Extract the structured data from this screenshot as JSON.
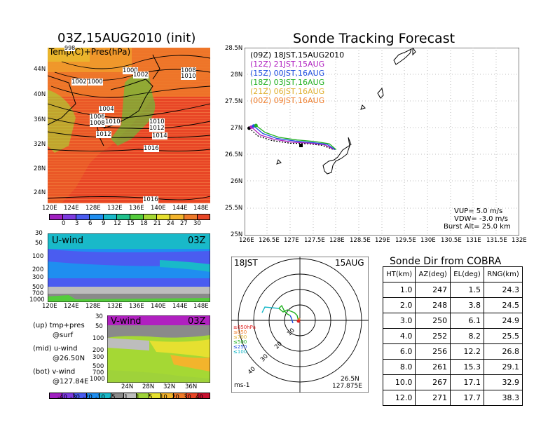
{
  "map_panel": {
    "title": "03Z,15AUG2010 (init)",
    "overlay_label": "Temp(C)+Pres(hPa)",
    "lat_ticks": [
      "44N",
      "40N",
      "36N",
      "32N",
      "28N",
      "24N"
    ],
    "lon_ticks": [
      "120E",
      "124E",
      "128E",
      "132E",
      "136E",
      "140E",
      "144E",
      "148E"
    ],
    "isobar_labels": [
      "998",
      "1000",
      "1002",
      "1000",
      "1002",
      "1008",
      "1010",
      "1004",
      "1006",
      "1008",
      "1010",
      "1012",
      "1010",
      "1012",
      "1014",
      "1016",
      "1016"
    ],
    "colorbar_ticks": [
      "0",
      "3",
      "6",
      "9",
      "12",
      "15",
      "18",
      "21",
      "24",
      "27",
      "30"
    ],
    "colorbar_colors": [
      "#a020c0",
      "#7d3be0",
      "#4a5cf0",
      "#1f8ef0",
      "#19b9c9",
      "#1fc18c",
      "#54cc3c",
      "#a5d834",
      "#e6e030",
      "#f3b42c",
      "#ee7a2a",
      "#e84626"
    ]
  },
  "tracking_panel": {
    "title": "Sonde Tracking Forecast",
    "lat_ticks": [
      "28.5N",
      "28N",
      "27.5N",
      "27N",
      "26.5N",
      "26N",
      "25.5N",
      "25N"
    ],
    "lon_ticks": [
      "126E",
      "126.5E",
      "127E",
      "127.5E",
      "128E",
      "128.5E",
      "129E",
      "129.5E",
      "130E",
      "130.5E",
      "131E",
      "131.5E",
      "132E"
    ],
    "legend": [
      {
        "label": "(09Z)  18JST,15AUG2010",
        "color": "#000000"
      },
      {
        "label": "(12Z)  21JST,15AUG",
        "color": "#b020c0"
      },
      {
        "label": "(15Z)  00JST,16AUG",
        "color": "#2050e0"
      },
      {
        "label": "(18Z)  03JST,16AUG",
        "color": "#20b020"
      },
      {
        "label": "(21Z)  06JST,16AUG",
        "color": "#e0b030"
      },
      {
        "label": "(00Z)  09JST,16AUG",
        "color": "#f08030"
      }
    ],
    "params": [
      "VUP= 5.0 m/s",
      "VDW= -3.0 m/s",
      "Burst Alt= 25.0 km"
    ]
  },
  "u_wind_panel": {
    "label": "U-wind",
    "time": "03Z",
    "pres_ticks": [
      "30",
      "50",
      "100",
      "200",
      "300",
      "500",
      "700",
      "1000"
    ],
    "lon_ticks": [
      "120E",
      "124E",
      "128E",
      "132E",
      "136E",
      "140E",
      "144E",
      "148E"
    ]
  },
  "v_wind_panel": {
    "label": "V-wind",
    "time": "03Z",
    "pres_ticks": [
      "30",
      "50",
      "100",
      "200",
      "300",
      "500",
      "700",
      "1000"
    ],
    "lat_ticks": [
      "24N",
      "28N",
      "32N",
      "36N"
    ],
    "colorbar_ticks": [
      "-40",
      "-30",
      "-20",
      "-10",
      "-5",
      "-1",
      "1",
      "5",
      "10",
      "20",
      "30",
      "40"
    ],
    "colorbar_colors": [
      "#a020c0",
      "#7d3be0",
      "#4a5cf0",
      "#1f8ef0",
      "#19b9c9",
      "#8a8a8a",
      "#bdbdbd",
      "#9fd23a",
      "#e6e030",
      "#f3b42c",
      "#ee7a2a",
      "#e84626",
      "#c8102e"
    ]
  },
  "notes": {
    "up": "(up) tmp+pres",
    "up2": "@surf",
    "mid": "(mid) u-wind",
    "mid2": "@26.50N",
    "bot": "(bot) v-wind",
    "bot2": "@127.84E"
  },
  "polar_panel": {
    "time": "18JST",
    "date": "15AUG",
    "ring_labels": [
      "10",
      "20",
      "30",
      "40"
    ],
    "level_legend": [
      {
        "label": "≥850hPa",
        "color": "#e02020"
      },
      {
        "label": "≤850",
        "color": "#f08030"
      },
      {
        "label": "≤700",
        "color": "#e0b030"
      },
      {
        "label": "≤500",
        "color": "#20b020"
      },
      {
        "label": "≤250",
        "color": "#2050e0"
      },
      {
        "label": "≤100",
        "color": "#19b9c9"
      }
    ],
    "unit": "ms-1",
    "location_lat": "26.5N",
    "location_lon": "127.875E"
  },
  "sonde_table": {
    "title": "Sonde Dir from COBRA",
    "headers": [
      "HT(km)",
      "AZ(deg)",
      "EL(deg)",
      "RNG(km)"
    ],
    "rows": [
      [
        "1.0",
        "247",
        "1.5",
        "24.3"
      ],
      [
        "2.0",
        "248",
        "3.8",
        "24.5"
      ],
      [
        "3.0",
        "250",
        "6.1",
        "24.9"
      ],
      [
        "4.0",
        "252",
        "8.2",
        "25.5"
      ],
      [
        "6.0",
        "256",
        "12.2",
        "26.8"
      ],
      [
        "8.0",
        "261",
        "15.3",
        "29.1"
      ],
      [
        "10.0",
        "267",
        "17.1",
        "32.9"
      ],
      [
        "12.0",
        "271",
        "17.7",
        "38.3"
      ]
    ]
  },
  "chart_data": [
    {
      "type": "heatmap",
      "title": "03Z,15AUG2010 (init)",
      "subtitle": "Temp(C)+Pres(hPa)",
      "xlim": [
        120,
        150
      ],
      "ylim": [
        22,
        48
      ],
      "colorbar_range": [
        0,
        30
      ]
    },
    {
      "type": "line",
      "title": "Sonde Tracking Forecast",
      "xlim": [
        126,
        132
      ],
      "ylim": [
        25,
        28.5
      ],
      "series": [
        {
          "name": "(09Z)  18JST,15AUG2010",
          "x": [
            126.1,
            126.3,
            126.6,
            127.0,
            127.4,
            127.7,
            127.95
          ],
          "y": [
            27.0,
            26.85,
            26.77,
            26.72,
            26.71,
            26.68,
            26.6
          ]
        },
        {
          "name": "(12Z)  21JST,15AUG",
          "x": [
            126.15,
            126.35,
            126.65,
            127.05,
            127.45,
            127.75,
            127.97
          ],
          "y": [
            27.02,
            26.87,
            26.79,
            26.74,
            26.72,
            26.69,
            26.6
          ]
        },
        {
          "name": "(15Z)  00JST,16AUG",
          "x": [
            126.2,
            126.4,
            126.7,
            127.1,
            127.5,
            127.8,
            127.98
          ],
          "y": [
            27.04,
            26.9,
            26.81,
            26.76,
            26.73,
            26.7,
            26.6
          ]
        },
        {
          "name": "(18Z)  03JST,16AUG",
          "x": [
            126.25,
            126.45,
            126.75,
            127.15,
            127.55,
            127.85,
            128.0
          ],
          "y": [
            27.05,
            26.92,
            26.83,
            26.78,
            26.75,
            26.71,
            26.6
          ]
        }
      ]
    },
    {
      "type": "table",
      "title": "Sonde Dir from COBRA",
      "columns": [
        "HT(km)",
        "AZ(deg)",
        "EL(deg)",
        "RNG(km)"
      ],
      "rows": [
        [
          1.0,
          247,
          1.5,
          24.3
        ],
        [
          2.0,
          248,
          3.8,
          24.5
        ],
        [
          3.0,
          250,
          6.1,
          24.9
        ],
        [
          4.0,
          252,
          8.2,
          25.5
        ],
        [
          6.0,
          256,
          12.2,
          26.8
        ],
        [
          8.0,
          261,
          15.3,
          29.1
        ],
        [
          10.0,
          267,
          17.1,
          32.9
        ],
        [
          12.0,
          271,
          17.7,
          38.3
        ]
      ]
    }
  ]
}
